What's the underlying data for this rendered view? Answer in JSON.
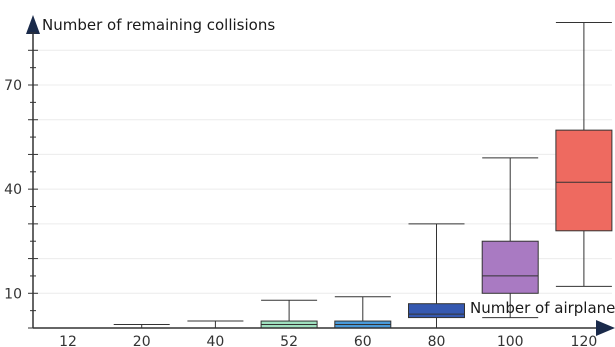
{
  "chart_data": {
    "type": "boxplot",
    "title": "",
    "xlabel": "Number of airplanes",
    "ylabel": "Number of remaining collisions",
    "ylim": [
      0,
      87
    ],
    "yticks": [
      10,
      40,
      70
    ],
    "grid": true,
    "categories": [
      "12",
      "20",
      "40",
      "52",
      "60",
      "80",
      "100",
      "120"
    ],
    "boxes": [
      {
        "category": "12",
        "min": 0,
        "q1": 0,
        "median": 0,
        "q3": 0,
        "max": 0,
        "color": "#999999"
      },
      {
        "category": "20",
        "min": 0,
        "q1": 0,
        "median": 0,
        "q3": 0,
        "max": 1,
        "color": "#999999"
      },
      {
        "category": "40",
        "min": 0,
        "q1": 0,
        "median": 0,
        "q3": 0,
        "max": 2,
        "color": "#999999"
      },
      {
        "category": "52",
        "min": 0,
        "q1": 0,
        "median": 1,
        "q3": 2,
        "max": 8,
        "color": "#9fe0bf"
      },
      {
        "category": "60",
        "min": 0,
        "q1": 0,
        "median": 1,
        "q3": 2,
        "max": 9,
        "color": "#4a9ad9"
      },
      {
        "category": "80",
        "min": 0,
        "q1": 3,
        "median": 4,
        "q3": 7,
        "max": 30,
        "color": "#3558b0"
      },
      {
        "category": "100",
        "min": 3,
        "q1": 10,
        "median": 15,
        "q3": 25,
        "max": 49,
        "color": "#a97ac2"
      },
      {
        "category": "120",
        "min": 12,
        "q1": 28,
        "median": 42,
        "q3": 57,
        "max": 88,
        "color": "#ee6a60"
      }
    ]
  }
}
